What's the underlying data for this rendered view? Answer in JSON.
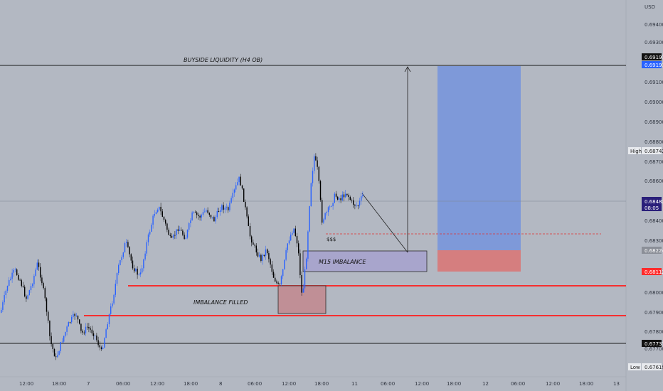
{
  "chart_data": {
    "type": "candlestick",
    "currency": "USD",
    "y_ticks": [
      "0.69400",
      "0.69300",
      "0.69100",
      "0.69000",
      "0.68900",
      "0.68800",
      "0.68700",
      "0.68600",
      "0.68400",
      "0.68300",
      "0.68000",
      "0.67900",
      "0.67800",
      "0.67700"
    ],
    "x_ticks": [
      "12:00",
      "18:00",
      "7",
      "06:00",
      "12:00",
      "18:00",
      "8",
      "06:00",
      "12:00",
      "18:00",
      "11",
      "06:00",
      "12:00",
      "18:00",
      "12",
      "06:00",
      "12:00",
      "18:00",
      "13"
    ],
    "price_labels": {
      "buyside_top": "0.69191",
      "buyside_blue": "0.69191",
      "high_tag": "High",
      "high_value": "0.68742",
      "current_price": "0.68482",
      "countdown": "08:05",
      "entry": "0.68224",
      "stop": "0.68112",
      "low_line": "0.67737",
      "low_tag": "Low",
      "low_value": "0.67619"
    },
    "annotations": {
      "buyside": "BUYSIDE LIQUIDITY (H4 OB)",
      "m15": "M15 IMBALANCE",
      "filled": "IMBALANCE FILLED",
      "sss": "$$$"
    },
    "levels": {
      "buyside_liquidity": 0.69191,
      "red_line_upper": 0.6805,
      "red_line_lower": 0.6788,
      "low_line": 0.67737,
      "current_price": 0.68482,
      "entry": 0.68224,
      "stop": 0.68112,
      "high": 0.68742,
      "low": 0.67619
    },
    "colors": {
      "background": "#b3b8c2",
      "bull_candle": "#2962ff",
      "bear_candle": "#000000",
      "target_zone": "#7b97da",
      "stop_zone": "#d77a7b",
      "imbalance_box": "#a8a5cc",
      "filled_box": "#c08f96",
      "red_line": "#ff1a1a"
    }
  }
}
